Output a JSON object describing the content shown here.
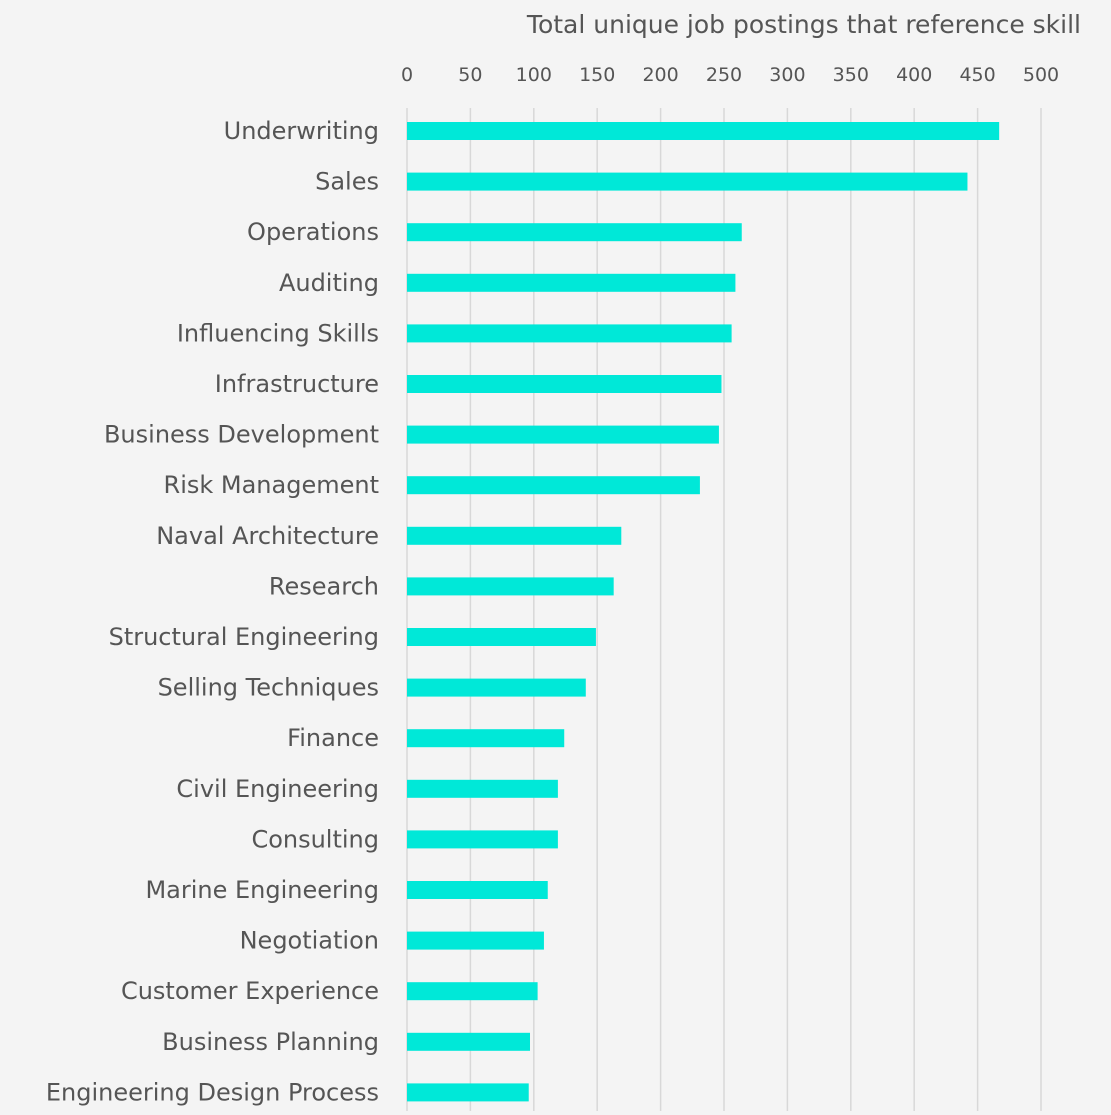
{
  "chart_data": {
    "type": "bar",
    "orientation": "horizontal",
    "xlabel": "Total unique job postings that reference skill",
    "xlabel_position": "top",
    "xlim": [
      0,
      500
    ],
    "xticks": [
      "0",
      "50",
      "100",
      "150",
      "200",
      "250",
      "300",
      "350",
      "400",
      "450",
      "500"
    ],
    "grid": true,
    "categories": [
      "Underwriting",
      "Sales",
      "Operations",
      "Auditing",
      "Influencing Skills",
      "Infrastructure",
      "Business Development",
      "Risk Management",
      "Naval Architecture",
      "Research",
      "Structural Engineering",
      "Selling Techniques",
      "Finance",
      "Civil Engineering",
      "Consulting",
      "Marine Engineering",
      "Negotiation",
      "Customer Experience",
      "Business Planning",
      "Engineering Design Process"
    ],
    "values": [
      467,
      442,
      264,
      259,
      256,
      248,
      246,
      231,
      169,
      163,
      149,
      141,
      124,
      119,
      119,
      111,
      108,
      103,
      97,
      96
    ],
    "colors": {
      "bar": "#00e8d8",
      "grid": "#d8d8d8",
      "text": "#555555",
      "background": "#f4f4f4"
    }
  }
}
